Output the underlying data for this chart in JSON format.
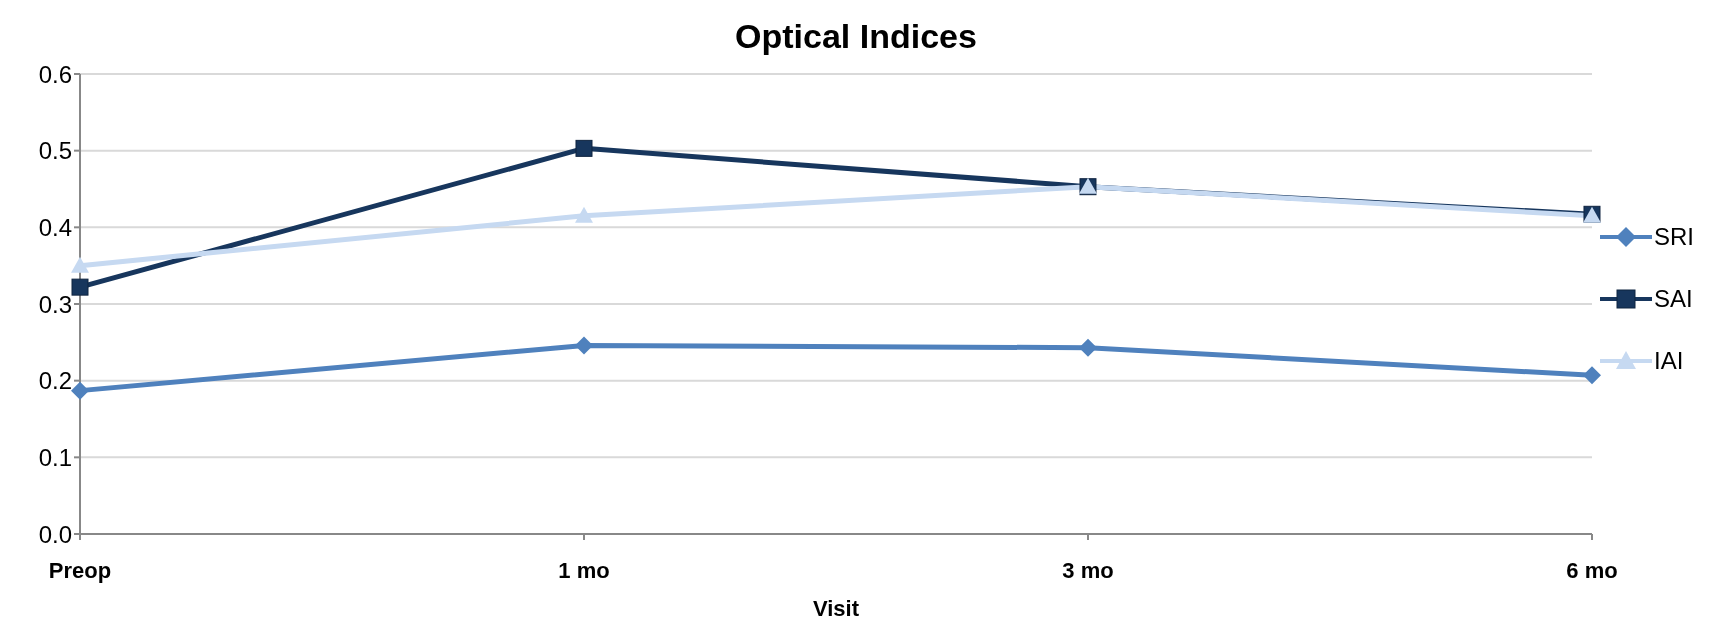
{
  "chart_data": {
    "type": "line",
    "title": "Optical Indices",
    "xlabel": "Visit",
    "categories": [
      "Preop",
      "1 mo",
      "3 mo",
      "6 mo"
    ],
    "series": [
      {
        "name": "SRI",
        "color": "#4f81bd",
        "marker": "diamond",
        "values": [
          0.187,
          0.246,
          0.243,
          0.207
        ]
      },
      {
        "name": "SAI",
        "color": "#17365d",
        "marker": "square",
        "values": [
          0.322,
          0.503,
          0.453,
          0.417
        ]
      },
      {
        "name": "IAI",
        "color": "#c6d9f1",
        "marker": "triangle",
        "values": [
          0.35,
          0.415,
          0.453,
          0.415
        ]
      }
    ],
    "ylim": [
      0,
      0.6
    ],
    "yticks": [
      {
        "value": 0,
        "label": "0.0"
      },
      0.1,
      0.2,
      0.3,
      0.4,
      0.5,
      0.6
    ],
    "grid": "y",
    "legend": "right"
  }
}
